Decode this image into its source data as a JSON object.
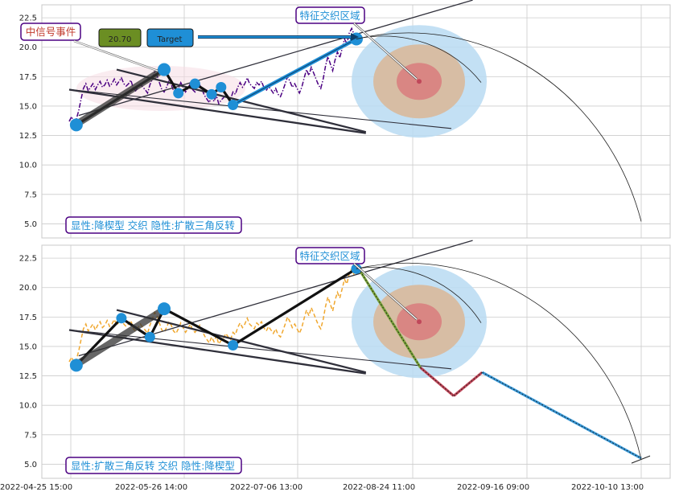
{
  "chart_data": [
    {
      "type": "line",
      "panel": "top",
      "title": "",
      "xlabel": "",
      "ylabel": "",
      "ylim": [
        3.8,
        23.6
      ],
      "yticks": [
        5.0,
        7.5,
        10.0,
        12.5,
        15.0,
        17.5,
        20.0,
        22.5
      ],
      "grid": true,
      "price_series": {
        "style": "dash-dot",
        "color": "#4b0082",
        "x": [
          0,
          1,
          2,
          3,
          4,
          5,
          6,
          7,
          8,
          9,
          10,
          11,
          12,
          13,
          14,
          15,
          16,
          17,
          18,
          19,
          20,
          21,
          22,
          23,
          24,
          25,
          26,
          27,
          28,
          29,
          30,
          31,
          32,
          33,
          34,
          35,
          36,
          37,
          38,
          39,
          40,
          41,
          42,
          43,
          44,
          45,
          46,
          47,
          48,
          49,
          50,
          51,
          52,
          53,
          54,
          55,
          56,
          57,
          58,
          59,
          60,
          61,
          62,
          63,
          64,
          65,
          66,
          67,
          68,
          69,
          70,
          71,
          72,
          73,
          74,
          75,
          76,
          77,
          78,
          79,
          80,
          81,
          82,
          83,
          84,
          85,
          86,
          87,
          88,
          89,
          90,
          91,
          92,
          93,
          94,
          95,
          96,
          97,
          98,
          99,
          100,
          101,
          102,
          103,
          104,
          105,
          106,
          107,
          108,
          109,
          110,
          111,
          112,
          113,
          114,
          115,
          116,
          117,
          118,
          119,
          120
        ],
        "y": [
          13.7,
          14.1,
          13.6,
          13.9,
          14.6,
          15.6,
          16.5,
          16.9,
          16.3,
          16.6,
          16.9,
          16.4,
          16.8,
          17.1,
          16.6,
          16.8,
          17.2,
          16.7,
          16.9,
          17.3,
          16.8,
          17.1,
          17.4,
          16.9,
          16.7,
          16.9,
          17.2,
          16.5,
          16.3,
          16.6,
          16.9,
          16.6,
          16.4,
          16.1,
          16.8,
          17.3,
          17.9,
          17.6,
          17.0,
          16.4,
          16.2,
          16.6,
          17.1,
          16.8,
          16.3,
          16.1,
          16.5,
          17.0,
          16.6,
          16.2,
          16.5,
          16.9,
          16.4,
          16.2,
          16.5,
          16.8,
          16.4,
          15.9,
          15.6,
          15.3,
          15.8,
          15.4,
          15.9,
          15.2,
          15.5,
          15.7,
          16.1,
          15.8,
          15.6,
          16.2,
          16.0,
          16.6,
          17.0,
          16.6,
          16.9,
          17.4,
          16.9,
          16.7,
          16.5,
          17.0,
          16.8,
          17.1,
          16.6,
          16.3,
          16.7,
          16.4,
          16.1,
          16.5,
          16.0,
          15.8,
          16.3,
          16.9,
          17.5,
          17.1,
          16.6,
          16.9,
          16.5,
          16.1,
          16.6,
          17.4,
          18.1,
          17.6,
          18.3,
          17.8,
          17.3,
          16.8,
          16.5,
          17.3,
          18.4,
          19.2,
          18.6,
          18.0,
          18.9,
          19.6,
          19.1,
          19.9,
          20.7,
          20.3,
          21.2,
          21.6,
          21.1
        ]
      },
      "annotations": {
        "signal_event_label": "中信号事件",
        "price_badge": "20.70",
        "target_badge": "Target",
        "zone_label": "特征交织区域",
        "pattern_label": "显性:降楔型 交织 隐性:扩散三角反转"
      }
    },
    {
      "type": "line",
      "panel": "bottom",
      "title": "",
      "xlabel": "",
      "ylabel": "",
      "ylim": [
        3.8,
        23.6
      ],
      "yticks": [
        5.0,
        7.5,
        10.0,
        12.5,
        15.0,
        17.5,
        20.0,
        22.5
      ],
      "grid": true,
      "price_series": {
        "style": "dashed",
        "color": "#f0a830",
        "x": [
          0,
          1,
          2,
          3,
          4,
          5,
          6,
          7,
          8,
          9,
          10,
          11,
          12,
          13,
          14,
          15,
          16,
          17,
          18,
          19,
          20,
          21,
          22,
          23,
          24,
          25,
          26,
          27,
          28,
          29,
          30,
          31,
          32,
          33,
          34,
          35,
          36,
          37,
          38,
          39,
          40,
          41,
          42,
          43,
          44,
          45,
          46,
          47,
          48,
          49,
          50,
          51,
          52,
          53,
          54,
          55,
          56,
          57,
          58,
          59,
          60,
          61,
          62,
          63,
          64,
          65,
          66,
          67,
          68,
          69,
          70,
          71,
          72,
          73,
          74,
          75,
          76,
          77,
          78,
          79,
          80,
          81,
          82,
          83,
          84,
          85,
          86,
          87,
          88,
          89,
          90,
          91,
          92,
          93,
          94,
          95,
          96,
          97,
          98,
          99,
          100,
          101,
          102,
          103,
          104,
          105,
          106,
          107,
          108,
          109,
          110,
          111,
          112,
          113,
          114,
          115,
          116,
          117,
          118,
          119,
          120
        ],
        "y": [
          13.7,
          14.1,
          13.6,
          13.9,
          14.6,
          15.6,
          16.5,
          16.9,
          16.3,
          16.6,
          16.9,
          16.4,
          16.8,
          17.1,
          16.6,
          16.8,
          17.2,
          16.7,
          16.9,
          17.3,
          16.8,
          17.1,
          17.4,
          16.9,
          16.7,
          16.9,
          17.2,
          16.5,
          16.3,
          16.6,
          16.9,
          16.6,
          16.4,
          16.1,
          16.8,
          17.3,
          17.9,
          17.6,
          17.0,
          16.4,
          16.2,
          16.6,
          17.1,
          16.8,
          16.3,
          16.1,
          16.5,
          17.0,
          16.6,
          16.2,
          16.5,
          16.9,
          16.4,
          16.2,
          16.5,
          16.8,
          16.4,
          15.9,
          15.6,
          15.3,
          15.8,
          15.4,
          15.9,
          15.2,
          15.5,
          15.7,
          16.1,
          15.8,
          15.6,
          16.2,
          16.0,
          16.6,
          17.0,
          16.6,
          16.9,
          17.4,
          16.9,
          16.7,
          16.5,
          17.0,
          16.8,
          17.1,
          16.6,
          16.3,
          16.7,
          16.4,
          16.1,
          16.5,
          16.0,
          15.8,
          16.3,
          16.9,
          17.5,
          17.1,
          16.6,
          16.9,
          16.5,
          16.1,
          16.6,
          17.4,
          18.1,
          17.6,
          18.3,
          17.8,
          17.3,
          16.8,
          16.5,
          17.3,
          18.4,
          19.2,
          18.6,
          18.0,
          18.9,
          19.6,
          19.1,
          19.9,
          20.7,
          20.3,
          21.2,
          21.6,
          21.1
        ]
      },
      "projection_path": {
        "x": [
          122,
          148,
          162,
          174,
          241
        ],
        "y": [
          21.6,
          13.2,
          10.8,
          12.8,
          5.5
        ],
        "segment_colors": [
          "#7aa33b",
          "#c0485a",
          "#c0485a",
          "#3a9ad9"
        ]
      },
      "annotations": {
        "zone_label": "特征交织区域",
        "pattern_label": "显性:扩散三角反转 交织 隐性:降楔型"
      }
    }
  ],
  "x_tick_labels": [
    "2022-04-25 15:00",
    "2022-05-26 14:00",
    "2022-07-06 13:00",
    "2022-08-24 11:00",
    "2022-09-16 09:00",
    "2022-10-10 13:00"
  ],
  "colors": {
    "grid": "#cccccc",
    "pattern_line": "#2f2f3a",
    "pivot": "#1f8fd6",
    "label_border": "#4b0082",
    "label_text": "#1f8fd6",
    "signal_text": "#c0392b",
    "badge_green": "#6b8e23",
    "badge_blue": "#1f8fd6",
    "zone_outer": "#b8daf2",
    "zone_mid": "#d9b99b",
    "zone_inner": "#d98080"
  }
}
